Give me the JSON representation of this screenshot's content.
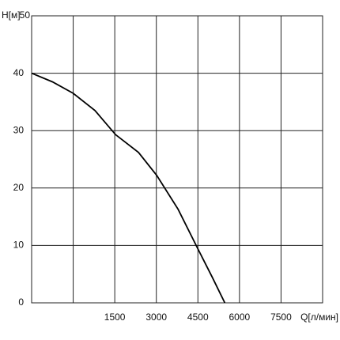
{
  "chart_data": {
    "type": "line",
    "x_label": "Q[л/мин]",
    "y_label": "H[м]",
    "x": [
      -1500,
      -750,
      0,
      786,
      1529,
      2357,
      3014,
      3786,
      4500,
      5014,
      5471
    ],
    "series": [
      {
        "name": "H",
        "color": "#000000",
        "values": [
          40,
          38.5,
          36.5,
          33.5,
          29.3,
          26.2,
          22.2,
          16.3,
          9.4,
          4.5,
          0
        ]
      }
    ],
    "xlim": [
      -1500,
      9000
    ],
    "xticks": [
      1500,
      3000,
      4500,
      6000,
      7500
    ],
    "ylim": [
      0,
      50
    ],
    "yticks": [
      0,
      10,
      20,
      30,
      40,
      50
    ],
    "grid": true
  }
}
